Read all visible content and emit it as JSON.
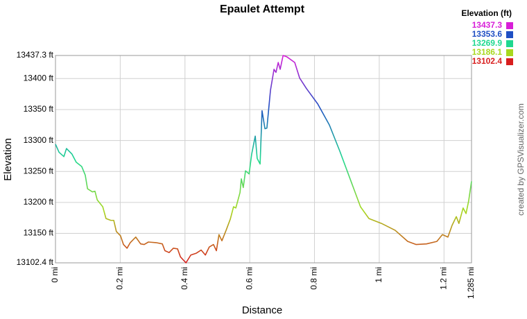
{
  "chart_data": {
    "type": "line",
    "title": "Epaulet Attempt",
    "x_label": "Distance",
    "y_label": "Elevation",
    "credit": "created by GPSVisualizer.com",
    "grid": true,
    "xlim": [
      0,
      1.285
    ],
    "ylim": [
      13102.4,
      13437.3
    ],
    "xticks": [
      {
        "value": 0,
        "label": "0 mi"
      },
      {
        "value": 0.2,
        "label": "0.2 mi"
      },
      {
        "value": 0.4,
        "label": "0.4 mi"
      },
      {
        "value": 0.6,
        "label": "0.6 mi"
      },
      {
        "value": 0.8,
        "label": "0.8 mi"
      },
      {
        "value": 1,
        "label": "1 mi"
      },
      {
        "value": 1.2,
        "label": "1.2 mi"
      },
      {
        "value": 1.285,
        "label": "1.285 mi"
      }
    ],
    "yticks": [
      {
        "value": 13102.4,
        "label": "13102.4 ft"
      },
      {
        "value": 13150,
        "label": "13150 ft"
      },
      {
        "value": 13200,
        "label": "13200 ft"
      },
      {
        "value": 13250,
        "label": "13250 ft"
      },
      {
        "value": 13300,
        "label": "13300 ft"
      },
      {
        "value": 13350,
        "label": "13350 ft"
      },
      {
        "value": 13400,
        "label": "13400 ft"
      },
      {
        "value": 13437.3,
        "label": "13437.3 ft"
      }
    ],
    "legend": {
      "title": "Elevation (ft)",
      "position": "top-right",
      "entries": [
        {
          "value": 13437.3,
          "color": "#d81ed8"
        },
        {
          "value": 13353.6,
          "color": "#1f4fc4"
        },
        {
          "value": 13269.9,
          "color": "#1ed890"
        },
        {
          "value": 13186.1,
          "color": "#a8d81e"
        },
        {
          "value": 13102.4,
          "color": "#d81e1e"
        }
      ]
    },
    "x": [
      0,
      0.011,
      0.026,
      0.034,
      0.051,
      0.064,
      0.081,
      0.092,
      0.099,
      0.114,
      0.122,
      0.129,
      0.146,
      0.156,
      0.171,
      0.18,
      0.188,
      0.201,
      0.21,
      0.221,
      0.231,
      0.248,
      0.263,
      0.274,
      0.287,
      0.311,
      0.33,
      0.338,
      0.351,
      0.364,
      0.377,
      0.386,
      0.403,
      0.418,
      0.435,
      0.45,
      0.463,
      0.475,
      0.488,
      0.497,
      0.505,
      0.514,
      0.527,
      0.54,
      0.55,
      0.557,
      0.57,
      0.574,
      0.58,
      0.587,
      0.598,
      0.606,
      0.617,
      0.623,
      0.632,
      0.638,
      0.647,
      0.653,
      0.664,
      0.675,
      0.681,
      0.688,
      0.694,
      0.703,
      0.715,
      0.739,
      0.754,
      0.775,
      0.81,
      0.846,
      0.878,
      0.91,
      0.942,
      0.968,
      1.007,
      1.049,
      1.088,
      1.114,
      1.146,
      1.178,
      1.195,
      1.212,
      1.225,
      1.238,
      1.246,
      1.259,
      1.268,
      1.276,
      1.285
    ],
    "values": [
      13294,
      13281,
      13274,
      13287,
      13278,
      13265,
      13258,
      13244,
      13222,
      13217,
      13218,
      13204,
      13193,
      13174,
      13171,
      13171,
      13153,
      13146,
      13132,
      13126,
      13135,
      13144,
      13133,
      13132,
      13136,
      13135,
      13133,
      13122,
      13119,
      13126,
      13125,
      13112,
      13102.4,
      13115,
      13118,
      13123,
      13115,
      13128,
      13132,
      13122,
      13148,
      13138,
      13155,
      13173,
      13193,
      13191,
      13216,
      13238,
      13224,
      13251,
      13246,
      13278,
      13307,
      13271,
      13262,
      13348,
      13319,
      13320,
      13381,
      13415,
      13410,
      13426,
      13415,
      13437.3,
      13435,
      13426,
      13401,
      13384,
      13359,
      13325,
      13283,
      13238,
      13193,
      13174,
      13166,
      13155,
      13137,
      13132,
      13133,
      13137,
      13148,
      13144,
      13163,
      13177,
      13166,
      13191,
      13182,
      13202,
      13234
    ]
  }
}
